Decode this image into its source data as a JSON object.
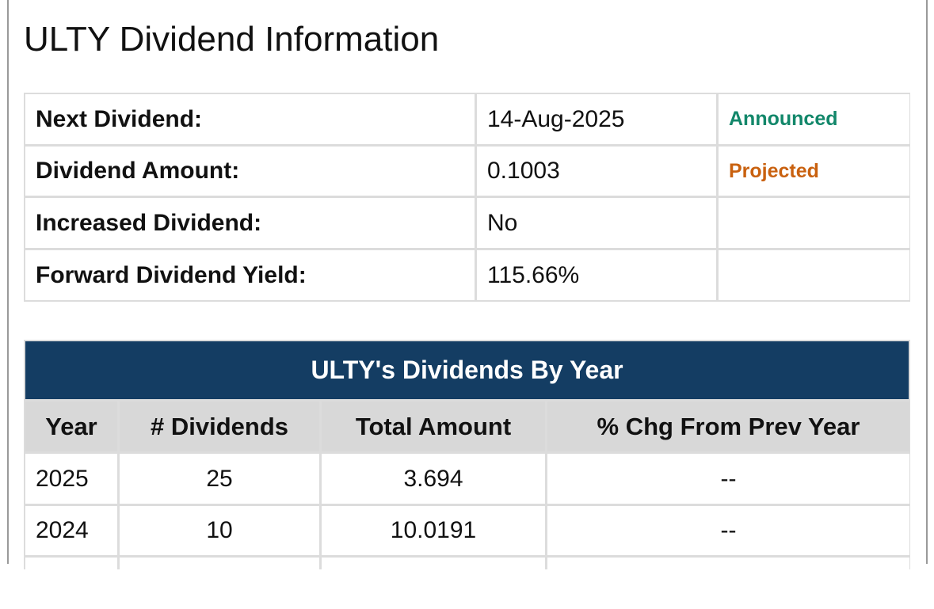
{
  "title": "ULTY Dividend Information",
  "info": {
    "rows": [
      [
        "Next Dividend:",
        "14-Aug-2025",
        "Announced"
      ],
      [
        "Dividend Amount:",
        "0.1003",
        "Projected"
      ],
      [
        "Increased Dividend:",
        "No"
      ],
      [
        "Forward Dividend Yield:",
        "115.66%"
      ]
    ]
  },
  "by_year": {
    "title": "ULTY's Dividends By Year",
    "headers": [
      "Year",
      "# Dividends",
      "Total Amount",
      "% Chg From Prev Year"
    ],
    "rows": [
      [
        "2025",
        "25",
        "3.694",
        "--"
      ],
      [
        "2024",
        "10",
        "10.0191",
        "--"
      ]
    ]
  }
}
